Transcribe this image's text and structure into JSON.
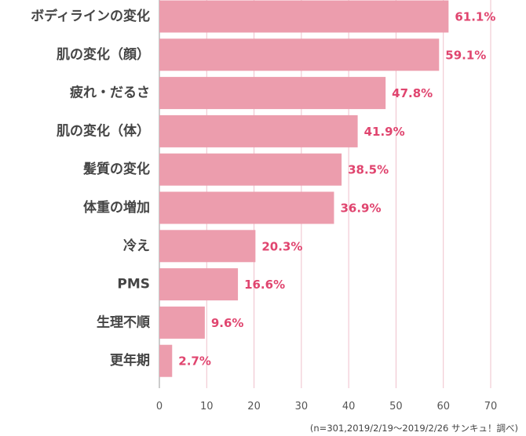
{
  "colors": {
    "bar": "#EC9DAD",
    "value_text": "#E0456F",
    "grid": "#EFC0CB",
    "axis": "#999999"
  },
  "chart_data": {
    "type": "bar",
    "orientation": "horizontal",
    "categories": [
      "ボディラインの変化",
      "肌の変化（顔）",
      "疲れ・だるさ",
      "肌の変化（体）",
      "髪質の変化",
      "体重の増加",
      "冷え",
      "PMS",
      "生理不順",
      "更年期"
    ],
    "values": [
      61.1,
      59.1,
      47.8,
      41.9,
      38.5,
      36.9,
      20.3,
      16.6,
      9.6,
      2.7
    ],
    "value_labels": [
      "61.1%",
      "59.1%",
      "47.8%",
      "41.9%",
      "38.5%",
      "36.9%",
      "20.3%",
      "16.6%",
      "9.6%",
      "2.7%"
    ],
    "xlim": [
      0,
      70
    ],
    "xticks": [
      0,
      10,
      20,
      30,
      40,
      50,
      60,
      70
    ],
    "grid": true,
    "note": "(n=301,2019/2/19～2019/2/26 サンキュ！調べ)"
  }
}
